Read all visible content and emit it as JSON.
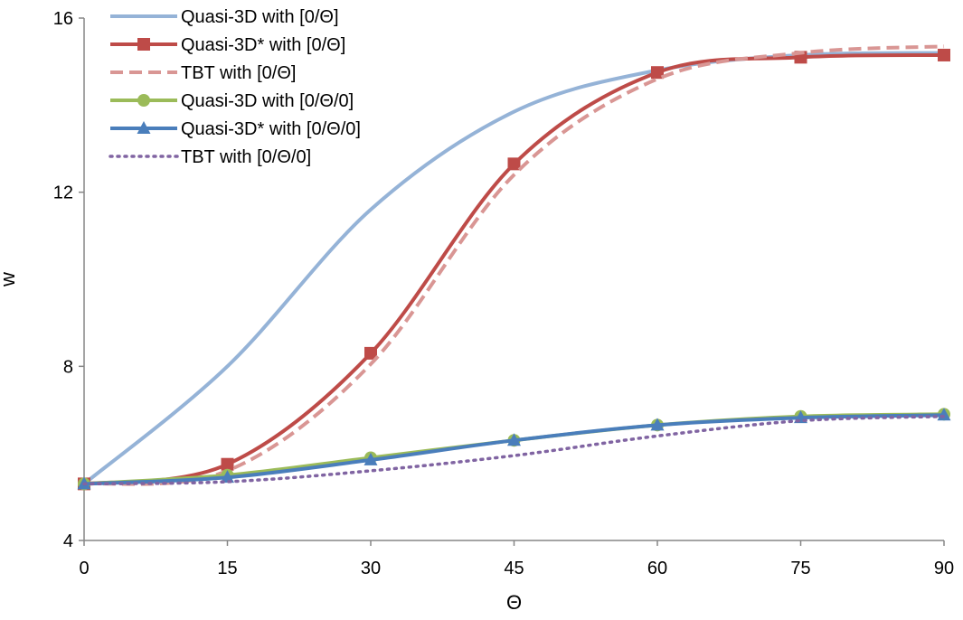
{
  "chart_data": {
    "type": "line",
    "title": "",
    "xlabel": "Θ",
    "ylabel": "w",
    "xlim": [
      0,
      90
    ],
    "ylim": [
      4,
      16
    ],
    "x_ticks": [
      "0",
      "15",
      "30",
      "45",
      "60",
      "75",
      "90"
    ],
    "y_ticks": [
      "4",
      "8",
      "12",
      "16"
    ],
    "x_tick_values": [
      0,
      15,
      30,
      45,
      60,
      75,
      90
    ],
    "y_tick_values": [
      4,
      8,
      12,
      16
    ],
    "grid": false,
    "legend_position": "top-left",
    "x": [
      0,
      15,
      30,
      45,
      60,
      75,
      90
    ],
    "series": [
      {
        "name": "Quasi-3D with [0/Θ]",
        "values": [
          5.3,
          8.0,
          11.6,
          13.85,
          14.8,
          15.15,
          15.2
        ],
        "color": "#95b3d7",
        "marker": "none",
        "dash": "solid"
      },
      {
        "name": "Quasi-3D* with [0/Θ]",
        "values": [
          5.3,
          5.75,
          8.3,
          12.65,
          14.75,
          15.1,
          15.15
        ],
        "color": "#be4b48",
        "marker": "square",
        "dash": "solid"
      },
      {
        "name": "TBT with [0/Θ]",
        "values": [
          5.3,
          5.6,
          8.05,
          12.4,
          14.6,
          15.2,
          15.35
        ],
        "color": "#d99694",
        "marker": "none",
        "dash": "dashed"
      },
      {
        "name": "Quasi-3D with [0/Θ/0]",
        "values": [
          5.3,
          5.5,
          5.9,
          6.3,
          6.65,
          6.85,
          6.9
        ],
        "color": "#9bbb59",
        "marker": "circle",
        "dash": "solid"
      },
      {
        "name": "Quasi-3D* with [0/Θ/0]",
        "values": [
          5.3,
          5.45,
          5.85,
          6.3,
          6.65,
          6.82,
          6.88
        ],
        "color": "#4a7ebb",
        "marker": "triangle",
        "dash": "solid"
      },
      {
        "name": "TBT with [0/Θ/0]",
        "values": [
          5.3,
          5.35,
          5.6,
          5.95,
          6.4,
          6.75,
          6.85
        ],
        "color": "#8064a2",
        "marker": "none",
        "dash": "dotted"
      }
    ]
  }
}
